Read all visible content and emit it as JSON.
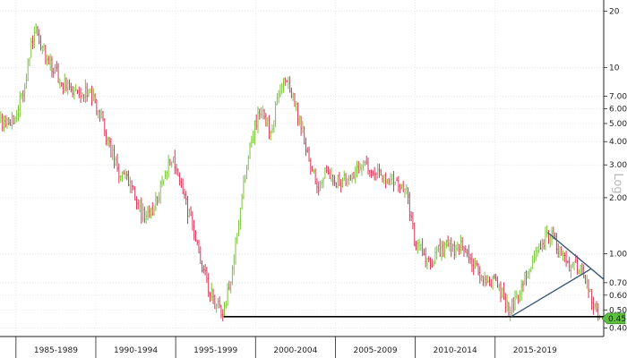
{
  "chart_data": {
    "type": "candlestick",
    "title": "",
    "ylabel": "Log",
    "yscale": "log",
    "ylim": [
      0.36,
      23
    ],
    "grid": true,
    "colors": {
      "up": "#7cc43a",
      "down": "#d8365a",
      "trend": "#3c5a78",
      "baseline": "#000000",
      "grid": "#dcdcdc",
      "last_price_badge": "#5cc03c"
    },
    "y_ticks": [
      {
        "value": 20,
        "label": "20"
      },
      {
        "value": 10,
        "label": "10"
      },
      {
        "value": 7,
        "label": "7.00"
      },
      {
        "value": 6,
        "label": "6.00"
      },
      {
        "value": 5,
        "label": "5.00"
      },
      {
        "value": 4,
        "label": "4.00"
      },
      {
        "value": 3,
        "label": "3.00"
      },
      {
        "value": 2,
        "label": "2.00"
      },
      {
        "value": 1,
        "label": "1.00"
      },
      {
        "value": 0.7,
        "label": "0.70"
      },
      {
        "value": 0.6,
        "label": "0.60"
      },
      {
        "value": 0.5,
        "label": "0.50"
      },
      {
        "value": 0.4,
        "label": "0.40"
      }
    ],
    "x_ticks": [
      {
        "year": 1985,
        "label": "1985-1989"
      },
      {
        "year": 1990,
        "label": "1990-1994"
      },
      {
        "year": 1995,
        "label": "1995-1999"
      },
      {
        "year": 2000,
        "label": "2000-2004"
      },
      {
        "year": 2005,
        "label": "2005-2009"
      },
      {
        "year": 2010,
        "label": "2010-2014"
      },
      {
        "year": 2015,
        "label": "2015-2019"
      }
    ],
    "x_range": [
      1984.0,
      2021.8
    ],
    "price_path": [
      [
        1984.0,
        5.0
      ],
      [
        1984.5,
        5.2
      ],
      [
        1985.0,
        5.5
      ],
      [
        1985.3,
        6.5
      ],
      [
        1985.7,
        9.0
      ],
      [
        1986.0,
        13.0
      ],
      [
        1986.3,
        16.0
      ],
      [
        1986.6,
        13.0
      ],
      [
        1987.0,
        11.5
      ],
      [
        1987.5,
        9.5
      ],
      [
        1988.0,
        8.3
      ],
      [
        1988.5,
        7.8
      ],
      [
        1989.0,
        7.6
      ],
      [
        1989.5,
        7.5
      ],
      [
        1990.0,
        6.5
      ],
      [
        1990.5,
        5.0
      ],
      [
        1991.0,
        3.5
      ],
      [
        1991.5,
        2.8
      ],
      [
        1992.0,
        2.5
      ],
      [
        1992.5,
        2.0
      ],
      [
        1993.0,
        1.6
      ],
      [
        1993.5,
        1.7
      ],
      [
        1994.0,
        2.1
      ],
      [
        1994.5,
        2.9
      ],
      [
        1994.8,
        3.3
      ],
      [
        1995.0,
        3.0
      ],
      [
        1995.5,
        2.1
      ],
      [
        1996.0,
        1.5
      ],
      [
        1996.5,
        1.0
      ],
      [
        1997.0,
        0.7
      ],
      [
        1997.5,
        0.55
      ],
      [
        1998.0,
        0.47
      ],
      [
        1998.5,
        0.75
      ],
      [
        1999.0,
        1.5
      ],
      [
        1999.5,
        3.0
      ],
      [
        2000.0,
        5.0
      ],
      [
        2000.5,
        6.0
      ],
      [
        2001.0,
        4.2
      ],
      [
        2001.5,
        7.5
      ],
      [
        2002.0,
        8.5
      ],
      [
        2002.5,
        6.5
      ],
      [
        2003.0,
        4.5
      ],
      [
        2003.5,
        3.0
      ],
      [
        2004.0,
        2.3
      ],
      [
        2004.5,
        2.8
      ],
      [
        2005.0,
        2.4
      ],
      [
        2005.5,
        2.5
      ],
      [
        2006.0,
        2.7
      ],
      [
        2006.5,
        2.8
      ],
      [
        2007.0,
        3.0
      ],
      [
        2007.5,
        2.8
      ],
      [
        2008.0,
        2.6
      ],
      [
        2008.5,
        2.5
      ],
      [
        2009.0,
        2.3
      ],
      [
        2009.5,
        2.1
      ],
      [
        2010.0,
        1.2
      ],
      [
        2010.5,
        1.0
      ],
      [
        2011.0,
        0.9
      ],
      [
        2011.5,
        1.05
      ],
      [
        2012.0,
        1.1
      ],
      [
        2012.5,
        1.05
      ],
      [
        2013.0,
        1.1
      ],
      [
        2013.5,
        0.95
      ],
      [
        2014.0,
        0.8
      ],
      [
        2014.5,
        0.75
      ],
      [
        2015.0,
        0.7
      ],
      [
        2015.5,
        0.6
      ],
      [
        2016.0,
        0.5
      ],
      [
        2016.5,
        0.6
      ],
      [
        2017.0,
        0.8
      ],
      [
        2017.5,
        0.95
      ],
      [
        2018.0,
        1.15
      ],
      [
        2018.5,
        1.3
      ],
      [
        2019.0,
        1.05
      ],
      [
        2019.5,
        0.9
      ],
      [
        2020.0,
        0.85
      ],
      [
        2020.5,
        0.85
      ],
      [
        2021.0,
        0.6
      ],
      [
        2021.5,
        0.46
      ]
    ],
    "annotations": [
      {
        "type": "horizontal_support",
        "x_start": 1998.0,
        "x_end": 2021.8,
        "y": 0.46
      },
      {
        "type": "trendline",
        "points": [
          [
            2016.0,
            0.46
          ],
          [
            2021.0,
            0.83
          ]
        ]
      },
      {
        "type": "trendline",
        "points": [
          [
            2018.3,
            1.3
          ],
          [
            2021.8,
            0.73
          ]
        ]
      }
    ],
    "last_price": {
      "value": 0.45,
      "label": "0.45"
    }
  }
}
